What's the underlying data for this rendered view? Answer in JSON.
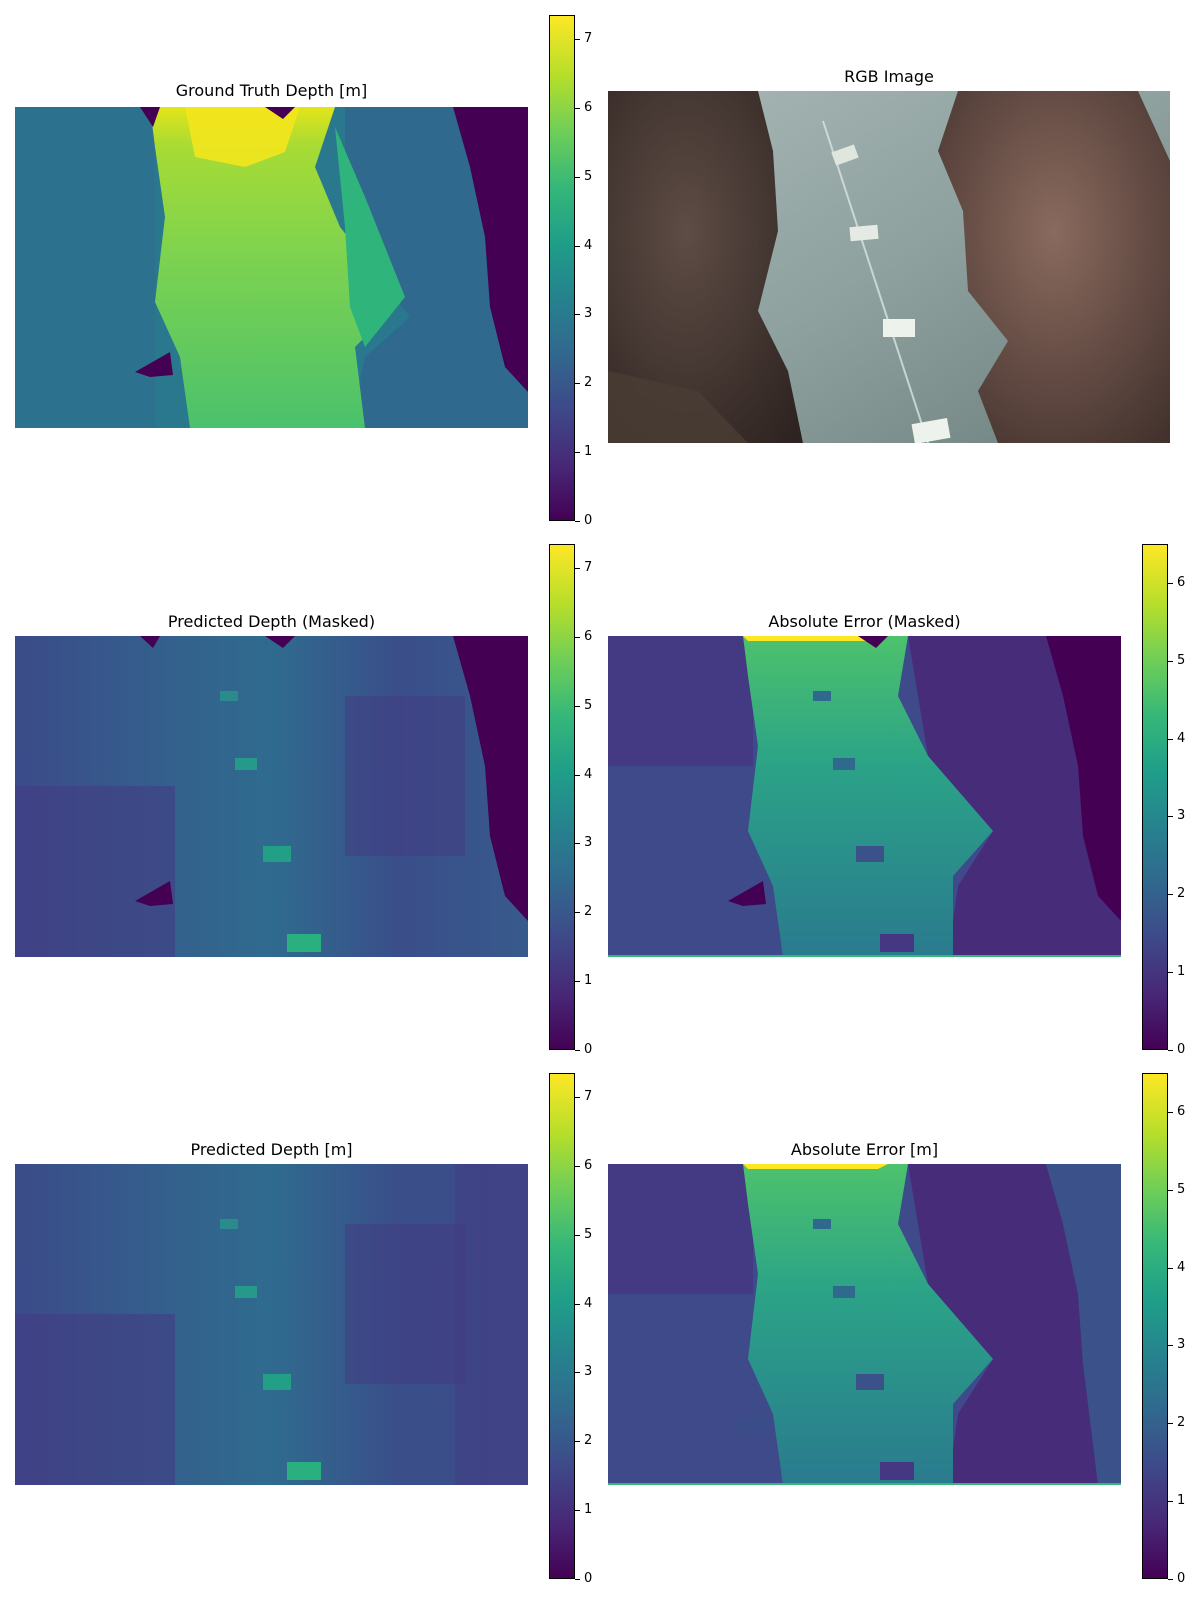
{
  "panels": {
    "gt": {
      "title": "Ground Truth Depth [m]"
    },
    "rgb": {
      "title": "RGB Image"
    },
    "pred_masked": {
      "title": "Predicted Depth (Masked)"
    },
    "err_masked": {
      "title": "Absolute Error (Masked)"
    },
    "pred": {
      "title": "Predicted Depth [m]"
    },
    "err": {
      "title": "Absolute Error [m]"
    }
  },
  "colors": {
    "viridis": [
      "#440154",
      "#482878",
      "#3e4989",
      "#31688e",
      "#26828e",
      "#1f9e89",
      "#35b779",
      "#6ece58",
      "#b5de2b",
      "#fde725"
    ]
  },
  "chart_data": [
    {
      "type": "heatmap",
      "title": "Ground Truth Depth [m]",
      "colormap": "viridis",
      "colorbar": {
        "range": [
          0,
          7.35
        ],
        "ticks": [
          "0",
          "1",
          "2",
          "3",
          "4",
          "5",
          "6",
          "7"
        ]
      }
    },
    {
      "type": "image",
      "title": "RGB Image"
    },
    {
      "type": "heatmap",
      "title": "Predicted Depth (Masked)",
      "colormap": "viridis",
      "colorbar": {
        "range": [
          0,
          7.35
        ],
        "ticks": [
          "0",
          "1",
          "2",
          "3",
          "4",
          "5",
          "6",
          "7"
        ]
      }
    },
    {
      "type": "heatmap",
      "title": "Absolute Error (Masked)",
      "colormap": "viridis",
      "colorbar": {
        "range": [
          0,
          6.5
        ],
        "ticks": [
          "0",
          "1",
          "2",
          "3",
          "4",
          "5",
          "6"
        ]
      }
    },
    {
      "type": "heatmap",
      "title": "Predicted Depth [m]",
      "colormap": "viridis",
      "colorbar": {
        "range": [
          0,
          7.35
        ],
        "ticks": [
          "0",
          "1",
          "2",
          "3",
          "4",
          "5",
          "6",
          "7"
        ]
      }
    },
    {
      "type": "heatmap",
      "title": "Absolute Error [m]",
      "colormap": "viridis",
      "colorbar": {
        "range": [
          0,
          6.5
        ],
        "ticks": [
          "0",
          "1",
          "2",
          "3",
          "4",
          "5",
          "6"
        ]
      }
    }
  ]
}
